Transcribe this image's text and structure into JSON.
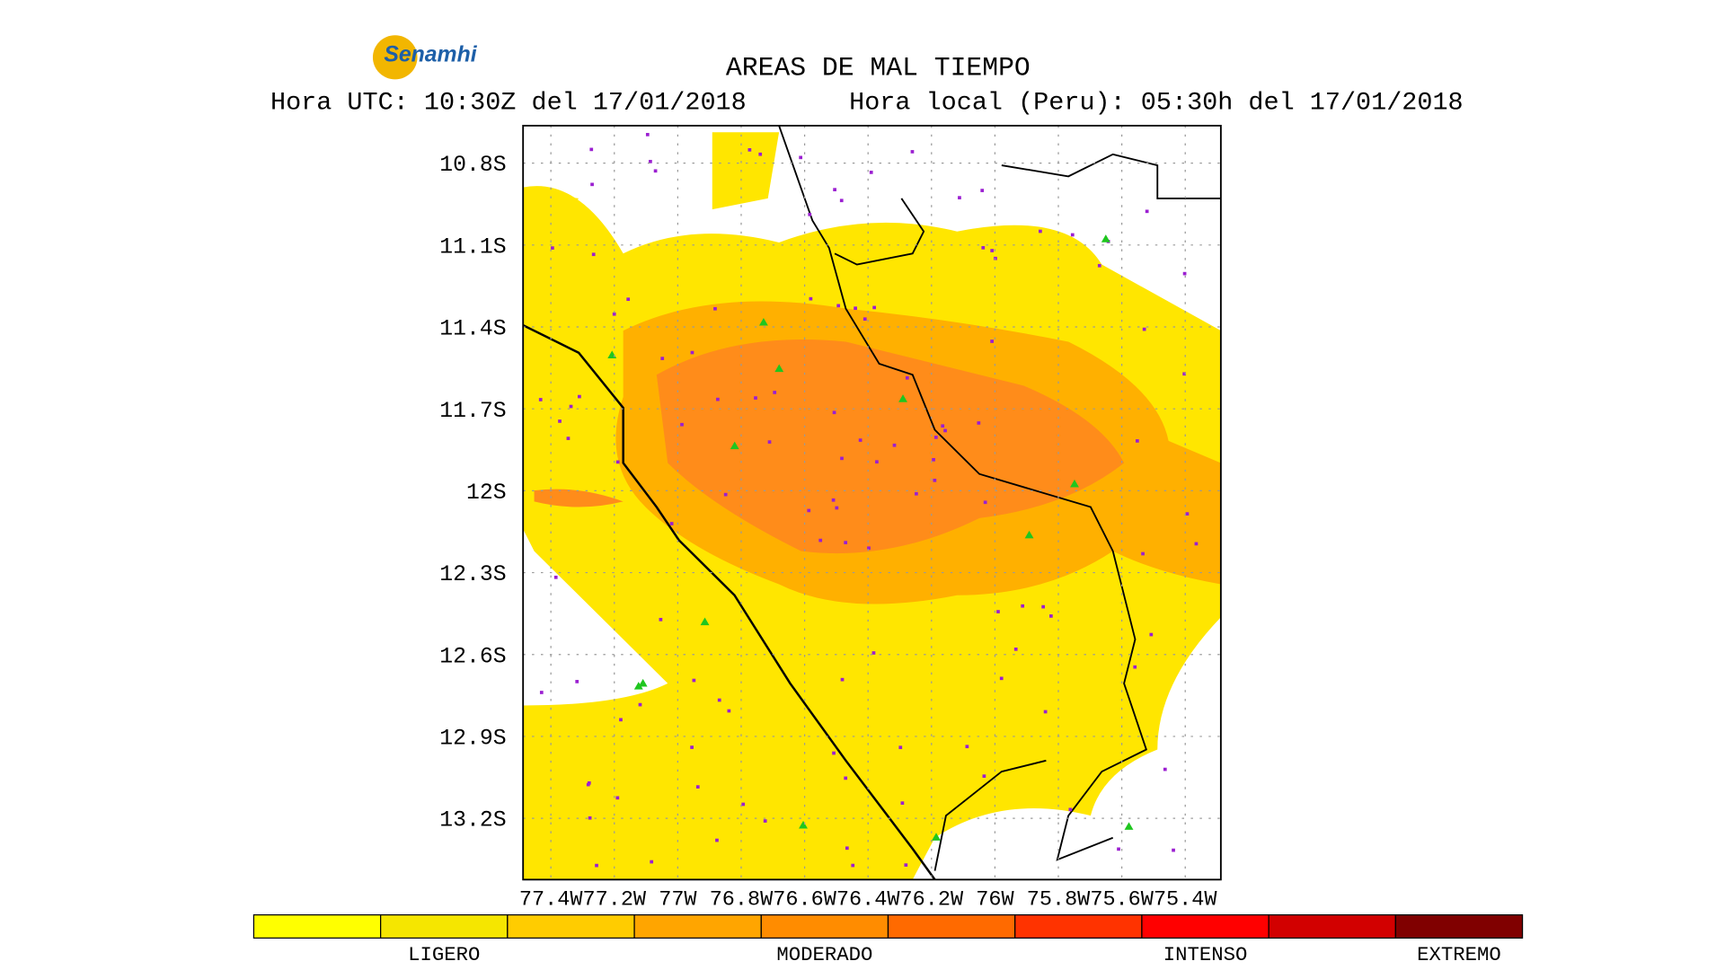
{
  "header": {
    "logo": "Senamhi",
    "title": "AREAS DE MAL TIEMPO",
    "utc": "Hora UTC: 10:30Z del 17/01/2018",
    "local": "Hora local (Peru): 05:30h del 17/01/2018"
  },
  "map": {
    "lat_labels": [
      "10.8S",
      "11.1S",
      "11.4S",
      "11.7S",
      "12S",
      "12.3S",
      "12.6S",
      "12.9S",
      "13.2S"
    ],
    "lon_labels": [
      "77.4W",
      "77.2W",
      "77W",
      "76.8W",
      "76.6W",
      "76.4W",
      "76.2W",
      "76W",
      "75.8W",
      "75.6W",
      "75.4W"
    ]
  },
  "legend": {
    "colors": [
      "#ffff00",
      "#f5e600",
      "#ffcc00",
      "#ffa500",
      "#ff8c00",
      "#ff6a00",
      "#ff3300",
      "#ff0000",
      "#d20000",
      "#800000"
    ],
    "labels": [
      "LIGERO",
      "MODERADO",
      "INTENSO",
      "EXTREMO"
    ]
  }
}
